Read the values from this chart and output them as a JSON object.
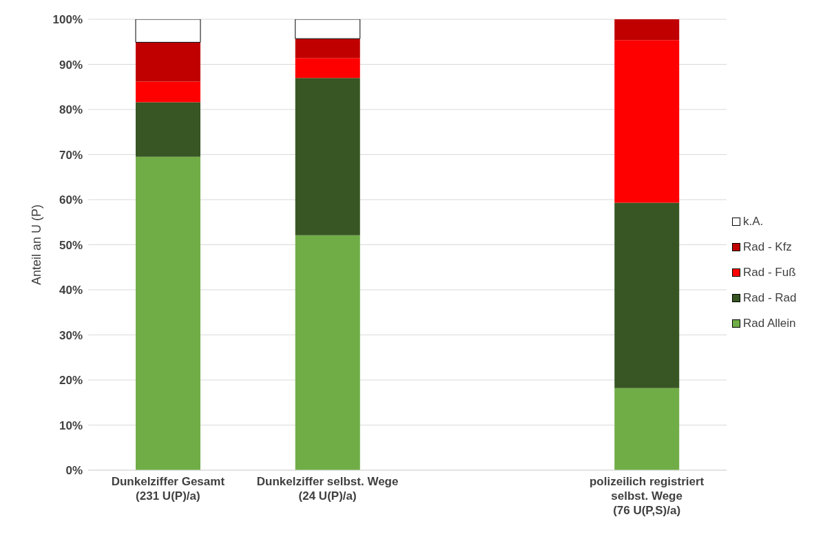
{
  "chart_data": {
    "type": "bar",
    "stacked": true,
    "ylabel": "Anteil an U (P)",
    "categories": [
      "Dunkelziffer Gesamt\n(231 U(P)/a)",
      "Dunkelziffer selbst. Wege\n(24 U(P)/a)",
      null,
      "polizeilich registriert\nselbst. Wege\n(76 U(P,S)/a)"
    ],
    "series": [
      {
        "name": "Rad Allein",
        "color": "#70ad47",
        "values": [
          69.5,
          52.1,
          null,
          18.2
        ]
      },
      {
        "name": "Rad - Rad",
        "color": "#375623",
        "values": [
          12.1,
          34.9,
          null,
          41.1
        ]
      },
      {
        "name": "Rad - Fuß",
        "color": "#ff0000",
        "values": [
          4.6,
          4.4,
          null,
          36.1
        ]
      },
      {
        "name": "Rad - Kfz",
        "color": "#c00000",
        "values": [
          8.7,
          4.3,
          null,
          4.6
        ]
      },
      {
        "name": "k.A.",
        "color": "#ffffff",
        "values": [
          5.1,
          4.3,
          null,
          null
        ]
      }
    ],
    "ylim": [
      0,
      100
    ],
    "yticks": [
      {
        "value": 0,
        "label": "0%"
      },
      {
        "value": 10,
        "label": "10%"
      },
      {
        "value": 20,
        "label": "20%"
      },
      {
        "value": 30,
        "label": "30%"
      },
      {
        "value": 40,
        "label": "40%"
      },
      {
        "value": 50,
        "label": "50%"
      },
      {
        "value": 60,
        "label": "60%"
      },
      {
        "value": 70,
        "label": "70%"
      },
      {
        "value": 80,
        "label": "80%"
      },
      {
        "value": 90,
        "label": "90%"
      },
      {
        "value": 100,
        "label": "100%"
      }
    ],
    "grid": "y",
    "legend": "right"
  }
}
